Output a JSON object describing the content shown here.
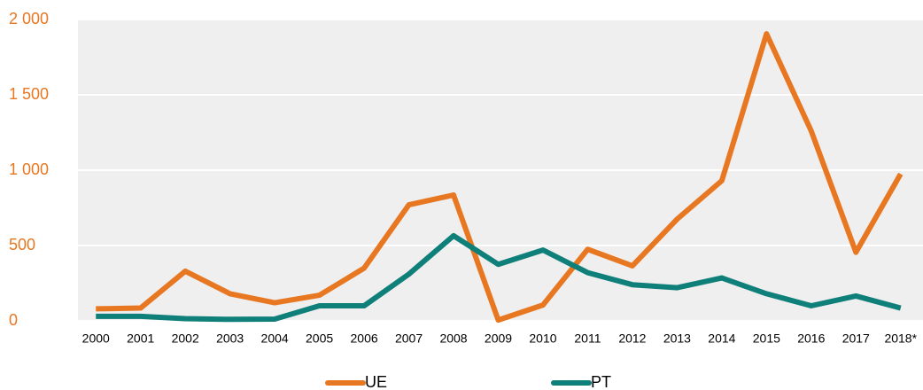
{
  "chart_data": {
    "type": "line",
    "categories": [
      "2000",
      "2001",
      "2002",
      "2003",
      "2004",
      "2005",
      "2006",
      "2007",
      "2008",
      "2009",
      "2010",
      "2011",
      "2012",
      "2013",
      "2014",
      "2015",
      "2016",
      "2017",
      "2018*"
    ],
    "series": [
      {
        "name": "UE",
        "color": "#e87722",
        "values": [
          80,
          85,
          330,
          180,
          120,
          170,
          350,
          770,
          835,
          5,
          105,
          475,
          365,
          675,
          930,
          1905,
          1260,
          455,
          975
        ]
      },
      {
        "name": "PT",
        "color": "#0f7f7a",
        "values": [
          30,
          30,
          15,
          10,
          12,
          100,
          100,
          310,
          565,
          375,
          470,
          320,
          240,
          220,
          285,
          180,
          100,
          165,
          85
        ]
      }
    ],
    "ylim": [
      0,
      2000
    ],
    "yticks": [
      0,
      500,
      {
        "value": 1000,
        "label": "1 000"
      },
      {
        "value": 1500,
        "label": "1 500"
      },
      {
        "value": 2000,
        "label": "2 000"
      }
    ],
    "grid": true,
    "legend": "bottom",
    "tick_color": "#e87722",
    "plot_background": "#efefef"
  }
}
